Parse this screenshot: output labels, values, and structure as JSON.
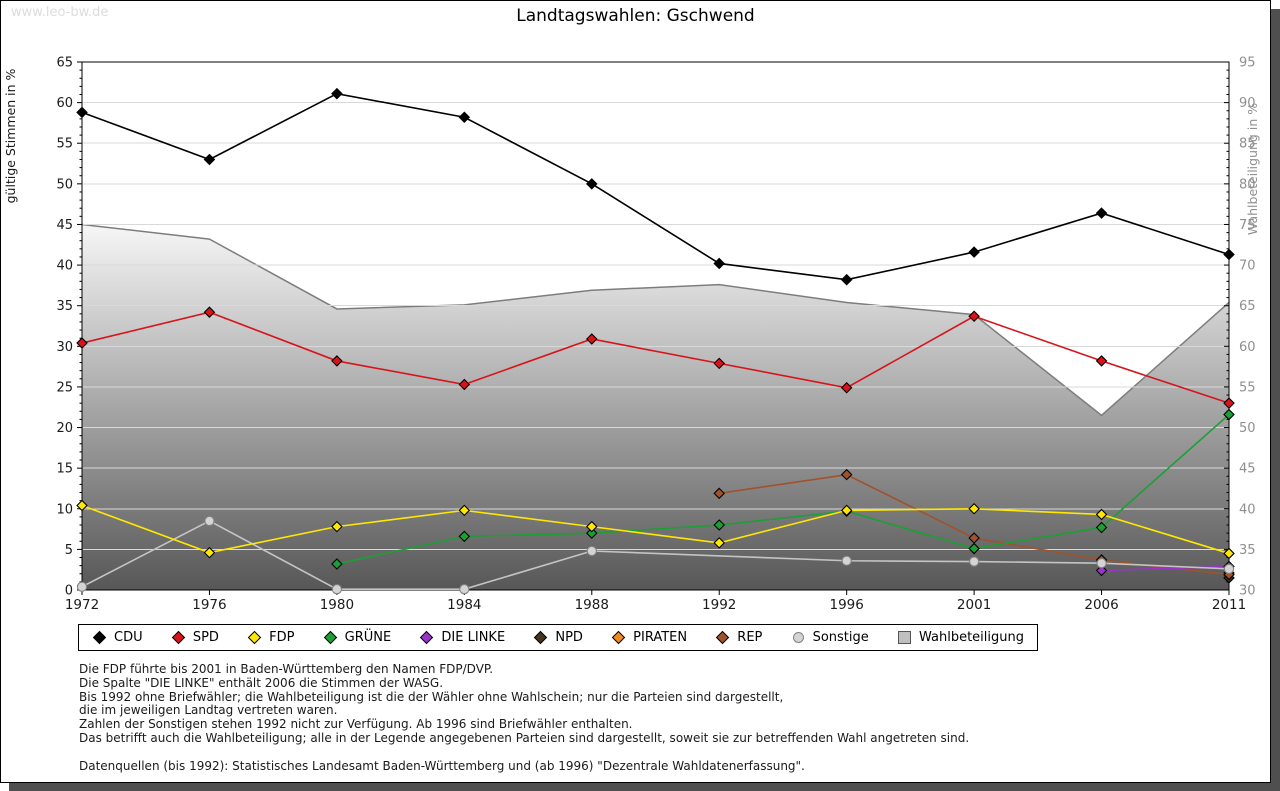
{
  "watermark": "www.leo-bw.de",
  "title": "Landtagswahlen: Gschwend",
  "chart_data": {
    "type": "line",
    "title": "Landtagswahlen: Gschwend",
    "x": [
      1972,
      1976,
      1980,
      1984,
      1988,
      1992,
      1996,
      2001,
      2006,
      2011
    ],
    "ylabel_left": "gültige Stimmen in %",
    "ylabel_right": "Wahlbeteiligung in %",
    "left_axis": {
      "min": 0,
      "max": 65,
      "step": 5
    },
    "right_axis": {
      "min": 30,
      "max": 95,
      "step": 5
    },
    "grid": true,
    "legend_position": "bottom",
    "series": [
      {
        "name": "CDU",
        "axis": "left",
        "color": "#000000",
        "marker": "diamond",
        "values": [
          58.8,
          53.0,
          61.1,
          58.2,
          50.0,
          40.2,
          38.2,
          41.6,
          46.4,
          41.3
        ]
      },
      {
        "name": "SPD",
        "axis": "left",
        "color": "#d8131a",
        "marker": "diamond",
        "values": [
          30.4,
          34.2,
          28.2,
          25.3,
          30.9,
          27.9,
          24.9,
          33.7,
          28.2,
          23.0
        ]
      },
      {
        "name": "FDP",
        "axis": "left",
        "color": "#ffe800",
        "marker": "diamond",
        "values": [
          10.4,
          4.6,
          7.8,
          9.8,
          7.8,
          5.8,
          9.8,
          10.0,
          9.3,
          4.5
        ]
      },
      {
        "name": "GRÜNE",
        "axis": "left",
        "color": "#1aa034",
        "marker": "diamond",
        "values": [
          null,
          null,
          3.2,
          6.6,
          7.0,
          8.0,
          9.7,
          5.1,
          7.7,
          21.6
        ]
      },
      {
        "name": "DIE LINKE",
        "axis": "left",
        "color": "#9933cc",
        "marker": "diamond",
        "values": [
          null,
          null,
          null,
          null,
          null,
          null,
          null,
          null,
          2.4,
          2.9
        ]
      },
      {
        "name": "NPD",
        "axis": "left",
        "color": "#46331c",
        "marker": "diamond",
        "values": [
          null,
          null,
          null,
          null,
          null,
          null,
          null,
          null,
          null,
          1.5
        ]
      },
      {
        "name": "PIRATEN",
        "axis": "left",
        "color": "#ef8b1e",
        "marker": "diamond",
        "values": [
          null,
          null,
          null,
          null,
          null,
          null,
          null,
          null,
          null,
          2.1
        ]
      },
      {
        "name": "REP",
        "axis": "left",
        "color": "#a0522d",
        "marker": "diamond",
        "values": [
          null,
          null,
          null,
          null,
          null,
          11.9,
          14.2,
          6.4,
          3.7,
          1.9
        ]
      },
      {
        "name": "Sonstige",
        "axis": "left",
        "color": "#d4d4d4",
        "marker": "circle",
        "values": [
          0.4,
          8.5,
          0.1,
          0.1,
          4.8,
          null,
          3.6,
          3.5,
          3.3,
          2.6
        ]
      },
      {
        "name": "Wahlbeteiligung",
        "axis": "right",
        "color": "#c0c0c0",
        "marker": "square",
        "type": "area",
        "values": [
          75.0,
          73.2,
          64.6,
          65.1,
          66.9,
          67.6,
          65.4,
          63.9,
          51.5,
          65.4
        ]
      }
    ]
  },
  "footnotes": [
    "Die FDP führte bis 2001 in Baden-Württemberg den Namen FDP/DVP.",
    "Die Spalte \"DIE LINKE\" enthält 2006 die Stimmen der WASG.",
    "Bis 1992 ohne Briefwähler; die Wahlbeteiligung ist die der Wähler ohne Wahlschein; nur die Parteien sind dargestellt,",
    "die im jeweiligen Landtag vertreten waren.",
    "Zahlen der Sonstigen stehen 1992 nicht zur Verfügung. Ab 1996 sind Briefwähler enthalten.",
    "Das betrifft auch die Wahlbeteiligung; alle in der Legende angegebenen Parteien sind dargestellt, soweit sie zur betreffenden Wahl angetreten sind.",
    "",
    "Datenquellen (bis 1992): Statistisches Landesamt Baden-Württemberg und (ab 1996) \"Dezentrale Wahldatenerfassung\"."
  ]
}
